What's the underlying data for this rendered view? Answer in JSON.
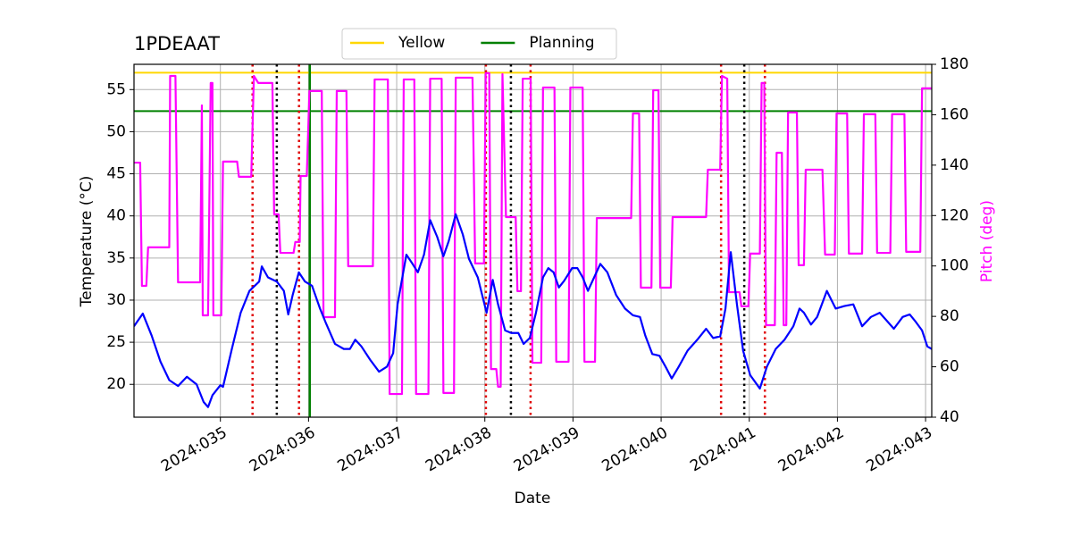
{
  "chart_data": {
    "type": "line",
    "title": "1PDEAAT",
    "xlabel": "Date",
    "ylabel": "Temperature (°C)",
    "y2label": "Pitch (deg)",
    "xlim": [
      34.02,
      43.07
    ],
    "xticks": [
      {
        "value": 35,
        "label": "2024:035"
      },
      {
        "value": 36,
        "label": "2024:036"
      },
      {
        "value": 37,
        "label": "2024:037"
      },
      {
        "value": 38,
        "label": "2024:038"
      },
      {
        "value": 39,
        "label": "2024:039"
      },
      {
        "value": 40,
        "label": "2024:040"
      },
      {
        "value": 41,
        "label": "2024:041"
      },
      {
        "value": 42,
        "label": "2024:042"
      },
      {
        "value": 43,
        "label": "2024:043"
      }
    ],
    "ylim": [
      16.1,
      58
    ],
    "yticks": [
      20,
      25,
      30,
      35,
      40,
      45,
      50,
      55
    ],
    "y2lim": [
      40,
      180
    ],
    "y2ticks": [
      40,
      60,
      80,
      100,
      120,
      140,
      160,
      180
    ],
    "y2color": "#ff00ff",
    "grid": true,
    "legend": "top",
    "hlines": [
      {
        "name": "Yellow",
        "y": 57,
        "color": "#ffd700"
      },
      {
        "name": "Planning",
        "y": 52.45,
        "color": "#008000"
      }
    ],
    "vlines": [
      {
        "x": 35.365,
        "color": "#e00000",
        "style": "dotted"
      },
      {
        "x": 35.892,
        "color": "#e00000",
        "style": "dotted"
      },
      {
        "x": 38.012,
        "color": "#e00000",
        "style": "dotted"
      },
      {
        "x": 38.519,
        "color": "#e00000",
        "style": "dotted"
      },
      {
        "x": 40.68,
        "color": "#e00000",
        "style": "dotted"
      },
      {
        "x": 41.177,
        "color": "#e00000",
        "style": "dotted"
      },
      {
        "x": 35.64,
        "color": "#000000",
        "style": "dotted"
      },
      {
        "x": 38.296,
        "color": "#000000",
        "style": "dotted"
      },
      {
        "x": 40.943,
        "color": "#000000",
        "style": "dotted"
      },
      {
        "x": 36.014,
        "color": "#008000",
        "style": "solid"
      }
    ],
    "series": [
      {
        "color": "#0000ff",
        "x": [
          34.02,
          34.12,
          34.22,
          34.32,
          34.42,
          34.52,
          34.62,
          34.73,
          34.81,
          34.86,
          34.91,
          35.0,
          35.03,
          35.13,
          35.23,
          35.33,
          35.44,
          35.47,
          35.54,
          35.64,
          35.72,
          35.77,
          35.82,
          35.89,
          35.96,
          36.04,
          36.13,
          36.2,
          36.3,
          36.4,
          36.47,
          36.53,
          36.6,
          36.7,
          36.8,
          36.89,
          36.96,
          37.01,
          37.11,
          37.18,
          37.24,
          37.31,
          37.38,
          37.46,
          37.53,
          37.59,
          37.67,
          37.75,
          37.82,
          37.92,
          38.02,
          38.09,
          38.15,
          38.23,
          38.3,
          38.38,
          38.44,
          38.51,
          38.58,
          38.66,
          38.72,
          38.78,
          38.84,
          38.9,
          38.99,
          39.05,
          39.11,
          39.17,
          39.24,
          39.31,
          39.39,
          39.49,
          39.59,
          39.68,
          39.76,
          39.82,
          39.9,
          39.98,
          40.05,
          40.12,
          40.2,
          40.3,
          40.41,
          40.51,
          40.59,
          40.67,
          40.73,
          40.79,
          40.86,
          40.93,
          41.01,
          41.12,
          41.2,
          41.3,
          41.4,
          41.5,
          41.57,
          41.62,
          41.7,
          41.77,
          41.88,
          41.98,
          42.08,
          42.18,
          42.28,
          42.38,
          42.48,
          42.59,
          42.64,
          42.74,
          42.82,
          42.89,
          42.96,
          43.02,
          43.07
        ],
        "values": [
          26.9,
          28.4,
          25.8,
          22.7,
          20.5,
          19.8,
          20.9,
          20.0,
          17.9,
          17.3,
          18.7,
          19.9,
          19.7,
          24.2,
          28.5,
          31.1,
          32.2,
          34.0,
          32.7,
          32.2,
          31.1,
          28.3,
          30.6,
          33.3,
          32.2,
          31.7,
          29.0,
          27.2,
          24.8,
          24.2,
          24.2,
          25.3,
          24.5,
          22.9,
          21.5,
          22.1,
          23.7,
          29.5,
          35.4,
          34.3,
          33.3,
          35.4,
          39.5,
          37.5,
          35.2,
          37.0,
          40.2,
          37.8,
          34.9,
          32.7,
          28.5,
          32.4,
          29.5,
          26.4,
          26.1,
          26.1,
          24.8,
          25.5,
          28.5,
          32.7,
          33.8,
          33.3,
          31.5,
          32.3,
          33.8,
          33.8,
          32.7,
          31.1,
          32.7,
          34.3,
          33.3,
          30.6,
          29.0,
          28.2,
          28.0,
          25.8,
          23.6,
          23.4,
          22.1,
          20.7,
          22.1,
          24.0,
          25.3,
          26.6,
          25.5,
          25.7,
          29.0,
          35.7,
          29.5,
          24.0,
          21.1,
          19.5,
          22.1,
          24.2,
          25.3,
          26.9,
          29.0,
          28.5,
          27.1,
          28.0,
          31.1,
          29.0,
          29.3,
          29.5,
          26.9,
          28.0,
          28.5,
          27.2,
          26.6,
          28.0,
          28.3,
          27.4,
          26.4,
          24.5,
          24.2
        ]
      },
      {
        "color": "#ff00ff",
        "axis": "y2",
        "x": [
          34.02,
          34.09,
          34.11,
          34.16,
          34.18,
          34.42,
          34.43,
          34.49,
          34.52,
          34.77,
          34.79,
          34.8,
          34.86,
          34.89,
          34.91,
          34.92,
          35.01,
          35.03,
          35.19,
          35.21,
          35.35,
          35.38,
          35.43,
          35.59,
          35.61,
          35.66,
          35.68,
          35.83,
          35.85,
          35.9,
          35.91,
          35.98,
          36.01,
          36.15,
          36.17,
          36.3,
          36.32,
          36.43,
          36.45,
          36.73,
          36.75,
          36.9,
          36.92,
          37.06,
          37.08,
          37.2,
          37.22,
          37.36,
          37.38,
          37.51,
          37.53,
          37.65,
          37.67,
          37.86,
          37.89,
          37.99,
          38.01,
          38.05,
          38.07,
          38.13,
          38.15,
          38.18,
          38.2,
          38.24,
          38.35,
          38.37,
          38.41,
          38.43,
          38.52,
          38.54,
          38.64,
          38.66,
          38.79,
          38.81,
          38.95,
          38.97,
          39.11,
          39.13,
          39.25,
          39.27,
          39.66,
          39.68,
          39.75,
          39.77,
          39.89,
          39.91,
          39.97,
          39.99,
          40.11,
          40.13,
          40.51,
          40.53,
          40.67,
          40.69,
          40.75,
          40.77,
          40.89,
          40.91,
          40.99,
          41.01,
          41.12,
          41.14,
          41.17,
          41.19,
          41.29,
          41.31,
          41.37,
          41.39,
          41.42,
          41.44,
          41.54,
          41.56,
          41.62,
          41.64,
          41.83,
          41.86,
          41.97,
          41.99,
          42.11,
          42.13,
          42.28,
          42.3,
          42.43,
          42.45,
          42.6,
          42.62,
          42.76,
          42.78,
          42.94,
          42.96,
          43.07
        ],
        "values": [
          141.0,
          141.0,
          92.1,
          92.1,
          107.4,
          107.4,
          175.4,
          175.4,
          93.5,
          93.5,
          163.7,
          80.4,
          80.4,
          172.6,
          172.6,
          80.4,
          80.4,
          141.4,
          141.4,
          135.4,
          135.4,
          175.4,
          172.6,
          172.6,
          120.5,
          120.5,
          105.2,
          105.2,
          109.5,
          109.5,
          135.7,
          135.7,
          169.4,
          169.4,
          79.7,
          79.7,
          169.4,
          169.4,
          99.9,
          99.9,
          174.0,
          174.0,
          49.2,
          49.2,
          174.0,
          174.0,
          49.2,
          49.2,
          174.3,
          174.3,
          49.6,
          49.6,
          174.7,
          174.7,
          101.0,
          101.0,
          176.5,
          176.5,
          59.1,
          59.1,
          52.1,
          52.1,
          176.1,
          119.4,
          119.4,
          90.0,
          90.0,
          174.3,
          174.3,
          61.6,
          61.6,
          170.8,
          170.8,
          62.0,
          62.0,
          170.8,
          170.8,
          62.0,
          62.0,
          119.0,
          119.0,
          160.5,
          160.5,
          91.4,
          91.4,
          169.7,
          169.7,
          91.4,
          91.4,
          119.4,
          119.4,
          138.2,
          138.2,
          175.4,
          174.3,
          89.6,
          89.6,
          84.0,
          84.0,
          104.9,
          104.9,
          172.6,
          172.6,
          76.5,
          76.5,
          144.9,
          144.9,
          76.5,
          76.5,
          160.9,
          160.9,
          100.3,
          100.3,
          138.2,
          138.2,
          104.5,
          104.5,
          160.5,
          160.5,
          104.9,
          104.9,
          160.2,
          160.2,
          105.2,
          105.2,
          160.2,
          160.2,
          105.6,
          105.6,
          170.5,
          170.5
        ]
      }
    ]
  }
}
